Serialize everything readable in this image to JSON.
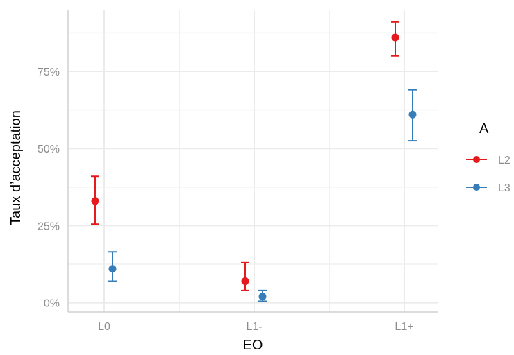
{
  "chart_data": {
    "type": "scatter",
    "xlabel": "EO",
    "ylabel": "Taux d’acceptation",
    "categories": [
      "L0",
      "L1-",
      "L1+"
    ],
    "yticks": [
      0,
      25,
      50,
      75
    ],
    "ytick_labels": [
      "0%",
      "25%",
      "50%",
      "75%"
    ],
    "ylim": [
      -3,
      95
    ],
    "grid": true,
    "error_bars": true,
    "legend": {
      "title": "A",
      "placement": "right"
    },
    "series": [
      {
        "name": "L2",
        "color": "#e41a1c",
        "values": [
          33,
          7,
          86
        ],
        "lower": [
          25.5,
          4,
          80
        ],
        "upper": [
          41,
          13,
          91
        ]
      },
      {
        "name": "L3",
        "color": "#377eb8",
        "values": [
          11,
          2,
          61
        ],
        "lower": [
          7,
          0.5,
          52.5
        ],
        "upper": [
          16.5,
          4,
          69
        ]
      }
    ]
  }
}
